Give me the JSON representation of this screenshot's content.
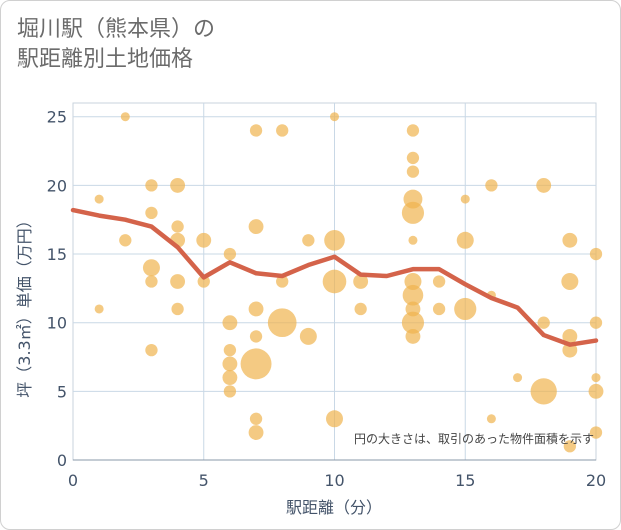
{
  "chart_data": {
    "type": "scatter",
    "title_line1": "堀川駅（熊本県）の",
    "title_line2": "駅距離別土地価格",
    "xlabel": "駅距離（分）",
    "ylabel": "坪（3.3㎡）単価（万円）",
    "xlim": [
      0,
      20
    ],
    "ylim": [
      0,
      26
    ],
    "x_ticks": [
      0,
      5,
      10,
      15,
      20
    ],
    "y_ticks": [
      0,
      5,
      10,
      15,
      20,
      25
    ],
    "note": "円の大きさは、取引のあった物件面積を示す",
    "bubble_color": "#f0b34e",
    "line_color": "#d4634a",
    "bubbles": [
      {
        "x": 1,
        "y": 19,
        "s": 1
      },
      {
        "x": 1,
        "y": 11,
        "s": 1
      },
      {
        "x": 2,
        "y": 25,
        "s": 1
      },
      {
        "x": 2,
        "y": 16,
        "s": 2
      },
      {
        "x": 3,
        "y": 20,
        "s": 2
      },
      {
        "x": 3,
        "y": 18,
        "s": 2
      },
      {
        "x": 3,
        "y": 14,
        "s": 4
      },
      {
        "x": 3,
        "y": 13,
        "s": 2
      },
      {
        "x": 3,
        "y": 8,
        "s": 2
      },
      {
        "x": 4,
        "y": 20,
        "s": 3
      },
      {
        "x": 4,
        "y": 17,
        "s": 2
      },
      {
        "x": 4,
        "y": 16,
        "s": 3
      },
      {
        "x": 4,
        "y": 13,
        "s": 3
      },
      {
        "x": 4,
        "y": 11,
        "s": 2
      },
      {
        "x": 5,
        "y": 16,
        "s": 3
      },
      {
        "x": 5,
        "y": 13,
        "s": 2
      },
      {
        "x": 6,
        "y": 15,
        "s": 2
      },
      {
        "x": 6,
        "y": 10,
        "s": 3
      },
      {
        "x": 6,
        "y": 8,
        "s": 2
      },
      {
        "x": 6,
        "y": 7,
        "s": 3
      },
      {
        "x": 6,
        "y": 6,
        "s": 3
      },
      {
        "x": 6,
        "y": 5,
        "s": 2
      },
      {
        "x": 7,
        "y": 24,
        "s": 2
      },
      {
        "x": 7,
        "y": 17,
        "s": 3
      },
      {
        "x": 7,
        "y": 11,
        "s": 3
      },
      {
        "x": 7,
        "y": 9,
        "s": 2
      },
      {
        "x": 7,
        "y": 7,
        "s": 14
      },
      {
        "x": 7,
        "y": 3,
        "s": 2
      },
      {
        "x": 7,
        "y": 2,
        "s": 3
      },
      {
        "x": 8,
        "y": 24,
        "s": 2
      },
      {
        "x": 8,
        "y": 10,
        "s": 12
      },
      {
        "x": 8,
        "y": 13,
        "s": 2
      },
      {
        "x": 9,
        "y": 16,
        "s": 2
      },
      {
        "x": 9,
        "y": 9,
        "s": 4
      },
      {
        "x": 10,
        "y": 25,
        "s": 1
      },
      {
        "x": 10,
        "y": 16,
        "s": 6
      },
      {
        "x": 10,
        "y": 13,
        "s": 8
      },
      {
        "x": 10,
        "y": 3,
        "s": 4
      },
      {
        "x": 11,
        "y": 13,
        "s": 3
      },
      {
        "x": 11,
        "y": 11,
        "s": 2
      },
      {
        "x": 13,
        "y": 24,
        "s": 2
      },
      {
        "x": 13,
        "y": 22,
        "s": 2
      },
      {
        "x": 13,
        "y": 21,
        "s": 2
      },
      {
        "x": 13,
        "y": 19,
        "s": 5
      },
      {
        "x": 13,
        "y": 18,
        "s": 7
      },
      {
        "x": 13,
        "y": 16,
        "s": 1
      },
      {
        "x": 13,
        "y": 13,
        "s": 4
      },
      {
        "x": 13,
        "y": 12,
        "s": 6
      },
      {
        "x": 13,
        "y": 11,
        "s": 3
      },
      {
        "x": 13,
        "y": 10,
        "s": 7
      },
      {
        "x": 13,
        "y": 9,
        "s": 3
      },
      {
        "x": 14,
        "y": 13,
        "s": 2
      },
      {
        "x": 14,
        "y": 11,
        "s": 2
      },
      {
        "x": 15,
        "y": 19,
        "s": 1
      },
      {
        "x": 15,
        "y": 16,
        "s": 4
      },
      {
        "x": 15,
        "y": 11,
        "s": 7
      },
      {
        "x": 16,
        "y": 20,
        "s": 2
      },
      {
        "x": 16,
        "y": 12,
        "s": 1
      },
      {
        "x": 16,
        "y": 3,
        "s": 1
      },
      {
        "x": 17,
        "y": 6,
        "s": 1
      },
      {
        "x": 18,
        "y": 20,
        "s": 3
      },
      {
        "x": 18,
        "y": 10,
        "s": 2
      },
      {
        "x": 18,
        "y": 5,
        "s": 10
      },
      {
        "x": 19,
        "y": 16,
        "s": 3
      },
      {
        "x": 19,
        "y": 13,
        "s": 4
      },
      {
        "x": 19,
        "y": 9,
        "s": 3
      },
      {
        "x": 19,
        "y": 8,
        "s": 3
      },
      {
        "x": 19,
        "y": 1,
        "s": 2
      },
      {
        "x": 20,
        "y": 15,
        "s": 2
      },
      {
        "x": 20,
        "y": 10,
        "s": 2
      },
      {
        "x": 20,
        "y": 6,
        "s": 1
      },
      {
        "x": 20,
        "y": 5,
        "s": 3
      },
      {
        "x": 20,
        "y": 2,
        "s": 2
      }
    ],
    "trend": {
      "x": [
        0,
        1,
        2,
        3,
        4,
        5,
        6,
        7,
        8,
        9,
        10,
        11,
        12,
        13,
        14,
        15,
        16,
        17,
        18,
        19,
        20
      ],
      "y": [
        18.2,
        17.8,
        17.5,
        17.0,
        15.5,
        13.3,
        14.4,
        13.6,
        13.4,
        14.2,
        14.8,
        13.5,
        13.4,
        13.9,
        13.9,
        12.8,
        11.8,
        11.1,
        9.1,
        8.4,
        8.7
      ]
    }
  }
}
